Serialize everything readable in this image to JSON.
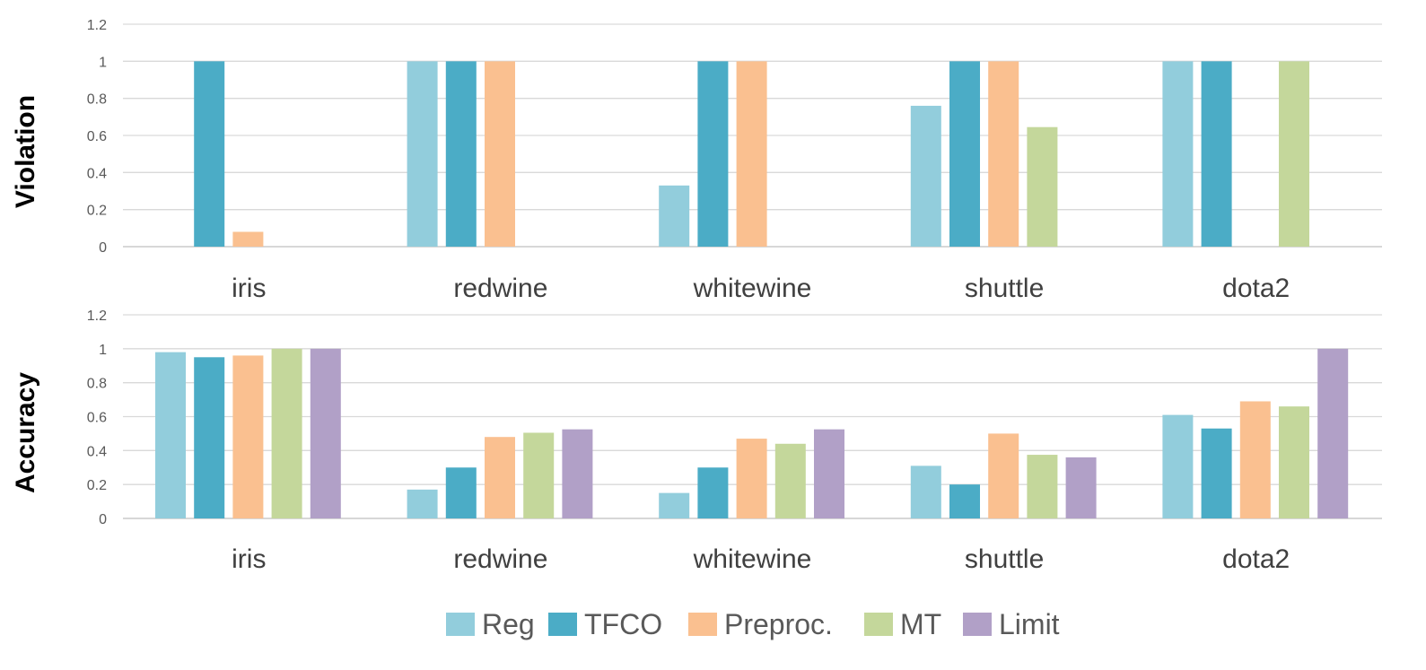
{
  "chart_data": [
    {
      "type": "bar",
      "ylabel": "Violation",
      "categories": [
        "iris",
        "redwine",
        "whitewine",
        "shuttle",
        "dota2"
      ],
      "yticks": [
        "0",
        "0.2",
        "0.4",
        "0.6",
        "0.8",
        "1",
        "1.2"
      ],
      "ylim": [
        0,
        1.2
      ],
      "grid": true,
      "series": [
        {
          "name": "Reg",
          "values": [
            0,
            1,
            0.33,
            0.76,
            1
          ]
        },
        {
          "name": "TFCO",
          "values": [
            1,
            1,
            1,
            1,
            1
          ]
        },
        {
          "name": "Preproc.",
          "values": [
            0.08,
            1,
            1,
            1,
            0
          ]
        },
        {
          "name": "MT",
          "values": [
            0,
            0,
            0,
            0.645,
            1
          ]
        },
        {
          "name": "Limit",
          "values": [
            0,
            0,
            0,
            0,
            0
          ]
        }
      ]
    },
    {
      "type": "bar",
      "ylabel": "Accuracy",
      "categories": [
        "iris",
        "redwine",
        "whitewine",
        "shuttle",
        "dota2"
      ],
      "yticks": [
        "0",
        "0.2",
        "0.4",
        "0.6",
        "0.8",
        "1",
        "1.2"
      ],
      "ylim": [
        0,
        1.2
      ],
      "grid": true,
      "series": [
        {
          "name": "Reg",
          "values": [
            0.98,
            0.17,
            0.15,
            0.31,
            0.61
          ]
        },
        {
          "name": "TFCO",
          "values": [
            0.95,
            0.3,
            0.3,
            0.2,
            0.53
          ]
        },
        {
          "name": "Preproc.",
          "values": [
            0.96,
            0.48,
            0.47,
            0.5,
            0.69
          ]
        },
        {
          "name": "MT",
          "values": [
            1,
            0.505,
            0.44,
            0.375,
            0.66
          ]
        },
        {
          "name": "Limit",
          "values": [
            1,
            0.525,
            0.525,
            0.36,
            1
          ]
        }
      ]
    }
  ],
  "legend": {
    "position": "bottom",
    "items": [
      {
        "label": "Reg",
        "color": "#92CDDC"
      },
      {
        "label": "TFCO",
        "color": "#4BACC6"
      },
      {
        "label": "Preproc.",
        "color": "#FAC090"
      },
      {
        "label": "MT",
        "color": "#C4D79B"
      },
      {
        "label": "Limit",
        "color": "#B1A0C7"
      }
    ]
  }
}
